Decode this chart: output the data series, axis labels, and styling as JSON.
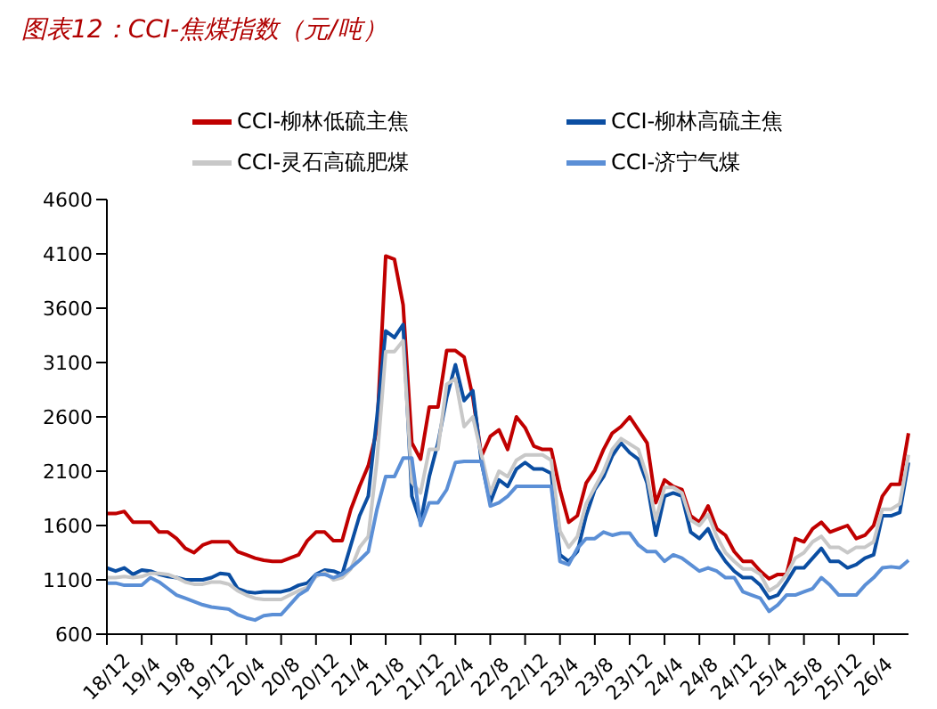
{
  "chart_data": {
    "type": "line",
    "title": "图表12：CCI-焦煤指数（元/吨）",
    "categories": [
      "18/12",
      null,
      null,
      null,
      "19/4",
      null,
      null,
      null,
      "19/8",
      null,
      null,
      null,
      "19/12",
      null,
      null,
      null,
      "20/4",
      null,
      null,
      null,
      "20/8",
      null,
      null,
      null,
      "20/12",
      null,
      null,
      null,
      "21/4",
      null,
      null,
      null,
      "21/8",
      null,
      null,
      null,
      "21/12",
      null,
      null,
      null,
      "22/4",
      null,
      null,
      null,
      "22/8",
      null,
      null,
      null,
      "22/12",
      null,
      null,
      null,
      "23/4",
      null,
      null,
      null,
      "23/8",
      null,
      null,
      null,
      "23/12",
      null,
      null,
      null,
      "24/4",
      null,
      null,
      null,
      "24/8",
      null,
      null,
      null,
      "24/12",
      null,
      null,
      null,
      "25/4",
      null,
      null,
      null,
      "25/8",
      null,
      null,
      null,
      "25/12",
      null,
      null,
      null,
      "26/4",
      null,
      null,
      null,
      null
    ],
    "series": [
      {
        "name": "CCI-柳林低硫主焦",
        "color": "#c00000",
        "values": [
          1710,
          1710,
          1730,
          1630,
          1630,
          1630,
          1540,
          1540,
          1480,
          1390,
          1350,
          1420,
          1450,
          1450,
          1450,
          1360,
          1330,
          1300,
          1280,
          1270,
          1270,
          1300,
          1330,
          1460,
          1540,
          1540,
          1460,
          1460,
          1750,
          1960,
          2150,
          2480,
          4080,
          4050,
          3630,
          2360,
          2210,
          2690,
          2690,
          3210,
          3210,
          3150,
          2780,
          2240,
          2420,
          2480,
          2300,
          2600,
          2500,
          2330,
          2300,
          2300,
          1930,
          1630,
          1690,
          1990,
          2110,
          2300,
          2450,
          2510,
          2600,
          2480,
          2360,
          1810,
          2020,
          1960,
          1930,
          1690,
          1630,
          1780,
          1570,
          1510,
          1360,
          1270,
          1270,
          1180,
          1110,
          1150,
          1150,
          1480,
          1450,
          1570,
          1630,
          1540,
          1570,
          1600,
          1480,
          1510,
          1600,
          1870,
          1980,
          1980,
          2450
        ]
      },
      {
        "name": "CCI-柳林高硫主焦",
        "color": "#0b4ea2",
        "values": [
          1210,
          1180,
          1210,
          1150,
          1190,
          1180,
          1150,
          1130,
          1120,
          1100,
          1100,
          1100,
          1120,
          1160,
          1150,
          1020,
          990,
          980,
          990,
          990,
          990,
          1010,
          1050,
          1070,
          1150,
          1190,
          1180,
          1150,
          1420,
          1690,
          1870,
          2600,
          3390,
          3330,
          3450,
          1870,
          1630,
          2050,
          2360,
          2780,
          3080,
          2750,
          2840,
          2180,
          1810,
          2020,
          1960,
          2120,
          2180,
          2120,
          2120,
          2080,
          1330,
          1270,
          1360,
          1690,
          1930,
          2050,
          2240,
          2360,
          2270,
          2210,
          1990,
          1510,
          1870,
          1900,
          1870,
          1540,
          1480,
          1570,
          1390,
          1270,
          1180,
          1120,
          1120,
          1050,
          930,
          960,
          1080,
          1210,
          1210,
          1300,
          1390,
          1270,
          1270,
          1210,
          1240,
          1300,
          1330,
          1690,
          1690,
          1720,
          2180
        ]
      },
      {
        "name": "CCI-灵石高硫肥煤",
        "color": "#c8c8c8",
        "values": [
          1120,
          1120,
          1130,
          1120,
          1130,
          1160,
          1160,
          1150,
          1120,
          1080,
          1060,
          1060,
          1080,
          1080,
          1060,
          1000,
          960,
          930,
          920,
          920,
          920,
          960,
          1000,
          1030,
          1130,
          1170,
          1100,
          1120,
          1200,
          1400,
          1500,
          2200,
          3200,
          3200,
          3300,
          2000,
          1900,
          2300,
          2300,
          2900,
          2950,
          2510,
          2600,
          2250,
          1900,
          2100,
          2050,
          2200,
          2250,
          2250,
          2250,
          2200,
          1550,
          1400,
          1500,
          1800,
          1950,
          2100,
          2300,
          2400,
          2350,
          2300,
          2050,
          1650,
          1950,
          1950,
          1900,
          1650,
          1600,
          1700,
          1500,
          1350,
          1270,
          1200,
          1200,
          1150,
          1000,
          1050,
          1150,
          1300,
          1350,
          1450,
          1500,
          1400,
          1400,
          1350,
          1400,
          1400,
          1450,
          1750,
          1750,
          1800,
          2250
        ]
      },
      {
        "name": "CCI-济宁气煤",
        "color": "#5b8fd6",
        "values": [
          1070,
          1070,
          1050,
          1050,
          1050,
          1120,
          1080,
          1020,
          960,
          930,
          900,
          870,
          850,
          840,
          830,
          780,
          750,
          730,
          770,
          780,
          780,
          870,
          960,
          1010,
          1150,
          1150,
          1120,
          1150,
          1210,
          1280,
          1360,
          1750,
          2050,
          2050,
          2220,
          2220,
          1600,
          1810,
          1810,
          1930,
          2180,
          2190,
          2190,
          2190,
          1780,
          1810,
          1870,
          1960,
          1960,
          1960,
          1960,
          1960,
          1270,
          1240,
          1390,
          1480,
          1480,
          1540,
          1510,
          1530,
          1530,
          1420,
          1360,
          1360,
          1270,
          1330,
          1300,
          1240,
          1180,
          1210,
          1180,
          1120,
          1120,
          990,
          960,
          930,
          810,
          870,
          960,
          960,
          990,
          1020,
          1120,
          1050,
          960,
          960,
          960,
          1050,
          1120,
          1210,
          1220,
          1210,
          1280
        ]
      }
    ],
    "ylim": [
      600,
      4600
    ],
    "yticks": [
      600,
      1100,
      1600,
      2100,
      2600,
      3100,
      3600,
      4100,
      4600
    ],
    "legend": "top",
    "grid": false,
    "marker": "none",
    "line_style": "solid"
  }
}
